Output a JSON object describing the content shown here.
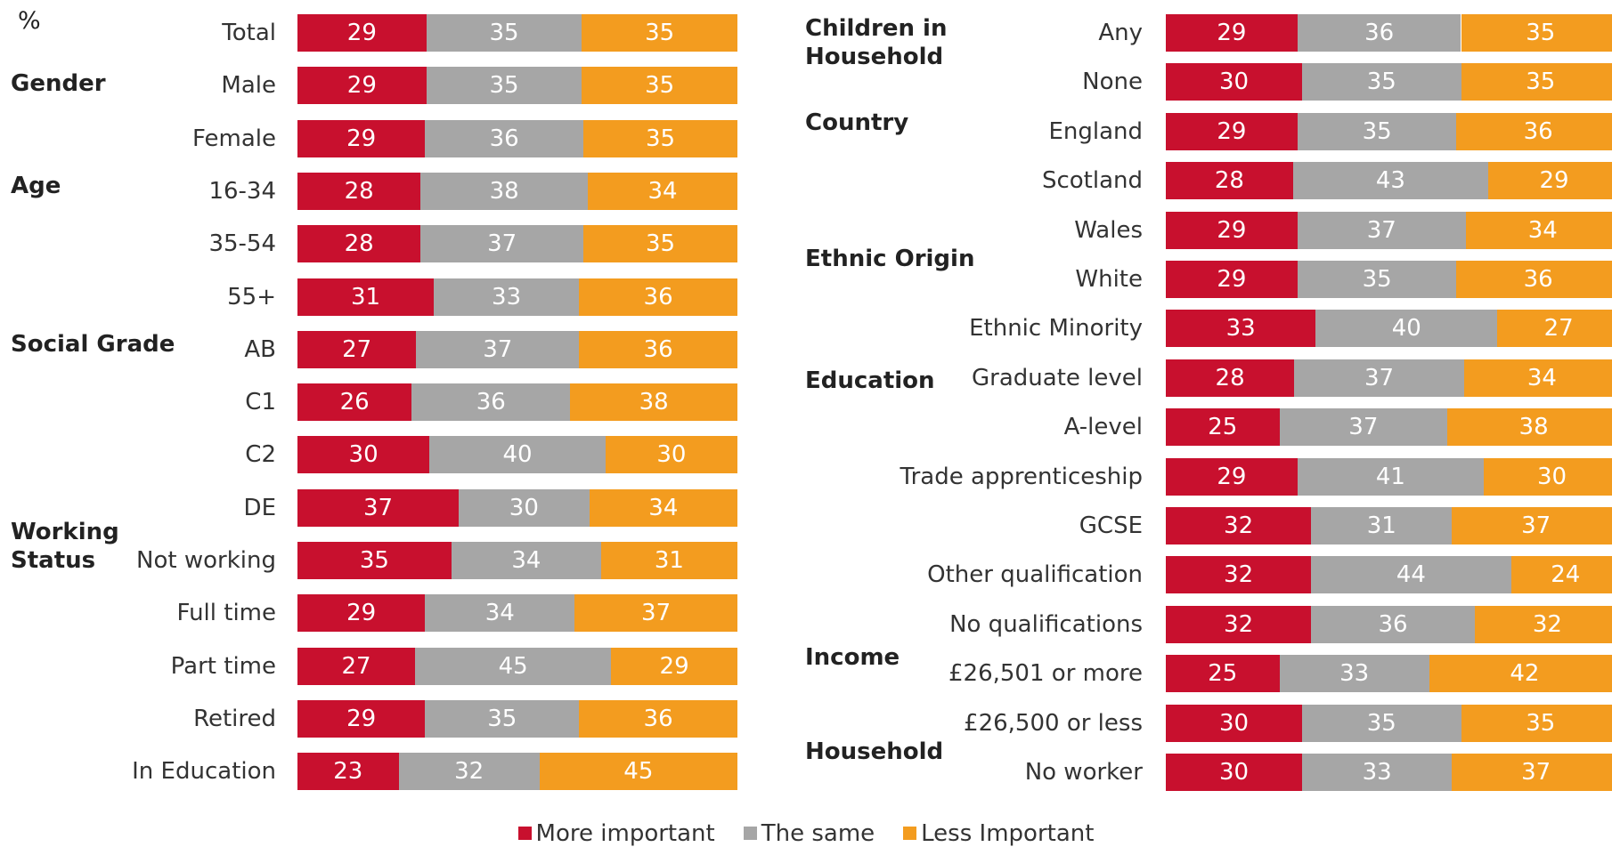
{
  "unit_label": "%",
  "colors": {
    "more": "#c8102e",
    "same": "#a6a6a6",
    "less": "#f39c1f"
  },
  "legend": [
    {
      "key": "more",
      "label": "More important"
    },
    {
      "key": "same",
      "label": "The same"
    },
    {
      "key": "less",
      "label": "Less Important"
    }
  ],
  "chart_data": [
    {
      "type": "bar",
      "orientation": "horizontal",
      "stacked": true,
      "series_names": [
        "More important",
        "The same",
        "Less Important"
      ],
      "groups": [
        {
          "name": "",
          "rows": [
            {
              "label": "Total",
              "values": [
                29,
                35,
                35
              ]
            }
          ]
        },
        {
          "name": "Gender",
          "rows": [
            {
              "label": "Male",
              "values": [
                29,
                35,
                35
              ]
            },
            {
              "label": "Female",
              "values": [
                29,
                36,
                35
              ]
            }
          ]
        },
        {
          "name": "Age",
          "rows": [
            {
              "label": "16-34",
              "values": [
                28,
                38,
                34
              ]
            },
            {
              "label": "35-54",
              "values": [
                28,
                37,
                35
              ]
            },
            {
              "label": "55+",
              "values": [
                31,
                33,
                36
              ]
            }
          ]
        },
        {
          "name": "Social Grade",
          "rows": [
            {
              "label": "AB",
              "values": [
                27,
                37,
                36
              ]
            },
            {
              "label": "C1",
              "values": [
                26,
                36,
                38
              ]
            },
            {
              "label": "C2",
              "values": [
                30,
                40,
                30
              ]
            },
            {
              "label": "DE",
              "values": [
                37,
                30,
                34
              ]
            }
          ]
        },
        {
          "name": "Working\nStatus",
          "rows": [
            {
              "label": "Not working",
              "values": [
                35,
                34,
                31
              ]
            },
            {
              "label": "Full time",
              "values": [
                29,
                34,
                37
              ]
            },
            {
              "label": "Part time",
              "values": [
                27,
                45,
                29
              ]
            },
            {
              "label": "Retired",
              "values": [
                29,
                35,
                36
              ]
            },
            {
              "label": "In Education",
              "values": [
                23,
                32,
                45
              ]
            }
          ]
        }
      ]
    },
    {
      "type": "bar",
      "orientation": "horizontal",
      "stacked": true,
      "series_names": [
        "More important",
        "The same",
        "Less Important"
      ],
      "groups": [
        {
          "name": "Children in\nHousehold",
          "rows": [
            {
              "label": "Any",
              "values": [
                29,
                36,
                35
              ]
            },
            {
              "label": "None",
              "values": [
                30,
                35,
                35
              ]
            }
          ]
        },
        {
          "name": "Country",
          "rows": [
            {
              "label": "England",
              "values": [
                29,
                35,
                36
              ]
            },
            {
              "label": "Scotland",
              "values": [
                28,
                43,
                29
              ]
            },
            {
              "label": "Wales",
              "values": [
                29,
                37,
                34
              ]
            }
          ]
        },
        {
          "name": "Ethnic Origin",
          "rows": [
            {
              "label": "White",
              "values": [
                29,
                35,
                36
              ]
            },
            {
              "label": "Ethnic Minority",
              "values": [
                33,
                40,
                27
              ]
            }
          ]
        },
        {
          "name": "Education",
          "rows": [
            {
              "label": "Graduate level",
              "values": [
                28,
                37,
                34
              ]
            },
            {
              "label": "A-level",
              "values": [
                25,
                37,
                38
              ]
            },
            {
              "label": "Trade apprenticeship",
              "values": [
                29,
                41,
                30
              ]
            },
            {
              "label": "GCSE",
              "values": [
                32,
                31,
                37
              ]
            },
            {
              "label": "Other qualification",
              "values": [
                32,
                44,
                24
              ]
            },
            {
              "label": "No qualifications",
              "values": [
                32,
                36,
                32
              ]
            }
          ]
        },
        {
          "name": "Income",
          "rows": [
            {
              "label": "£26,501 or more",
              "values": [
                25,
                33,
                42
              ]
            },
            {
              "label": "£26,500 or less",
              "values": [
                30,
                35,
                35
              ]
            }
          ]
        },
        {
          "name": "Household",
          "rows": [
            {
              "label": "No worker",
              "values": [
                30,
                33,
                37
              ]
            }
          ]
        }
      ]
    }
  ]
}
